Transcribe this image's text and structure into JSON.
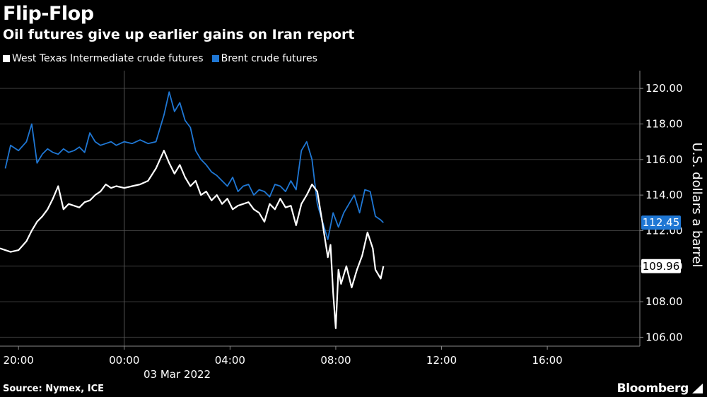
{
  "header": {
    "title": "Flip-Flop",
    "subtitle": "Oil futures give up earlier gains on Iran report"
  },
  "legend": [
    {
      "label": "West Texas Intermediate crude futures",
      "color": "#ffffff"
    },
    {
      "label": "Brent crude futures",
      "color": "#1f77d4"
    }
  ],
  "footer": {
    "source": "Source: Nymex, ICE",
    "brand": "Bloomberg"
  },
  "chart_data": {
    "type": "line",
    "title": "Flip-Flop",
    "subtitle": "Oil futures give up earlier gains on Iran report",
    "ylabel": "U.S. dollars a barrel",
    "ylim": [
      105.5,
      121
    ],
    "yticks": [
      "106.00",
      "108.00",
      "110.00",
      "112.00",
      "114.00",
      "116.00",
      "118.00",
      "120.00"
    ],
    "yticks_values": [
      106,
      108,
      110,
      112,
      114,
      116,
      118,
      120
    ],
    "xlim": [
      -4.7,
      19.5
    ],
    "xticks": [
      "20:00",
      "00:00",
      "04:00",
      "08:00",
      "12:00",
      "16:00"
    ],
    "xticks_hours": [
      -4,
      0,
      4,
      8,
      12,
      16
    ],
    "date_label": "03 Mar 2022",
    "date_marker_hour": 0,
    "grid": true,
    "legend_position": "top-left",
    "series": [
      {
        "name": "West Texas Intermediate crude futures",
        "color": "#ffffff",
        "last_value_label": "109.96",
        "x": [
          -4.7,
          -4.3,
          -4.0,
          -3.7,
          -3.5,
          -3.3,
          -3.1,
          -2.9,
          -2.7,
          -2.5,
          -2.3,
          -2.1,
          -1.9,
          -1.7,
          -1.5,
          -1.3,
          -1.1,
          -0.9,
          -0.7,
          -0.5,
          -0.3,
          0.0,
          0.3,
          0.6,
          0.9,
          1.2,
          1.5,
          1.7,
          1.9,
          2.1,
          2.3,
          2.5,
          2.7,
          2.9,
          3.1,
          3.3,
          3.5,
          3.7,
          3.9,
          4.1,
          4.3,
          4.5,
          4.7,
          4.9,
          5.1,
          5.3,
          5.5,
          5.7,
          5.9,
          6.1,
          6.3,
          6.5,
          6.7,
          6.9,
          7.1,
          7.3,
          7.5,
          7.7,
          7.8,
          7.9,
          8.0,
          8.1,
          8.2,
          8.4,
          8.6,
          8.8,
          9.0,
          9.2,
          9.4,
          9.5,
          9.7,
          9.8
        ],
        "y": [
          111.0,
          110.8,
          110.9,
          111.4,
          112.0,
          112.5,
          112.8,
          113.2,
          113.8,
          114.5,
          113.2,
          113.5,
          113.4,
          113.3,
          113.6,
          113.7,
          114.0,
          114.2,
          114.6,
          114.4,
          114.5,
          114.4,
          114.5,
          114.6,
          114.8,
          115.5,
          116.5,
          115.8,
          115.2,
          115.7,
          115.0,
          114.5,
          114.8,
          114.0,
          114.2,
          113.7,
          114.0,
          113.5,
          113.8,
          113.2,
          113.4,
          113.5,
          113.6,
          113.2,
          113.0,
          112.5,
          113.5,
          113.2,
          113.8,
          113.3,
          113.4,
          112.3,
          113.5,
          114.0,
          114.6,
          114.2,
          112.4,
          110.5,
          111.2,
          108.5,
          106.5,
          109.8,
          109.0,
          110.0,
          108.8,
          109.8,
          110.6,
          111.9,
          111.0,
          109.8,
          109.3,
          110.0
        ]
      },
      {
        "name": "Brent crude futures",
        "color": "#1f77d4",
        "last_value_label": "112.45",
        "x": [
          -4.5,
          -4.3,
          -4.0,
          -3.7,
          -3.5,
          -3.3,
          -3.1,
          -2.9,
          -2.7,
          -2.5,
          -2.3,
          -2.1,
          -1.9,
          -1.7,
          -1.5,
          -1.3,
          -1.1,
          -0.9,
          -0.7,
          -0.5,
          -0.3,
          0.0,
          0.3,
          0.6,
          0.9,
          1.2,
          1.5,
          1.7,
          1.9,
          2.1,
          2.3,
          2.5,
          2.7,
          2.9,
          3.1,
          3.3,
          3.5,
          3.7,
          3.9,
          4.1,
          4.3,
          4.5,
          4.7,
          4.9,
          5.1,
          5.3,
          5.5,
          5.7,
          5.9,
          6.1,
          6.3,
          6.5,
          6.7,
          6.9,
          7.1,
          7.3,
          7.5,
          7.7,
          7.9,
          8.1,
          8.3,
          8.5,
          8.7,
          8.9,
          9.1,
          9.3,
          9.5,
          9.7,
          9.8
        ],
        "y": [
          115.5,
          116.8,
          116.5,
          117.0,
          118.0,
          115.8,
          116.3,
          116.6,
          116.4,
          116.3,
          116.6,
          116.4,
          116.5,
          116.7,
          116.4,
          117.5,
          117.0,
          116.8,
          116.9,
          117.0,
          116.8,
          117.0,
          116.9,
          117.1,
          116.9,
          117.0,
          118.5,
          119.8,
          118.7,
          119.2,
          118.2,
          117.8,
          116.5,
          116.0,
          115.7,
          115.3,
          115.1,
          114.8,
          114.5,
          115.0,
          114.2,
          114.5,
          114.6,
          114.0,
          114.3,
          114.2,
          113.9,
          114.6,
          114.5,
          114.2,
          114.8,
          114.3,
          116.5,
          117.0,
          116.0,
          113.5,
          112.5,
          111.5,
          113.0,
          112.2,
          113.0,
          113.5,
          114.0,
          113.0,
          114.3,
          114.2,
          112.8,
          112.6,
          112.45
        ]
      }
    ]
  }
}
